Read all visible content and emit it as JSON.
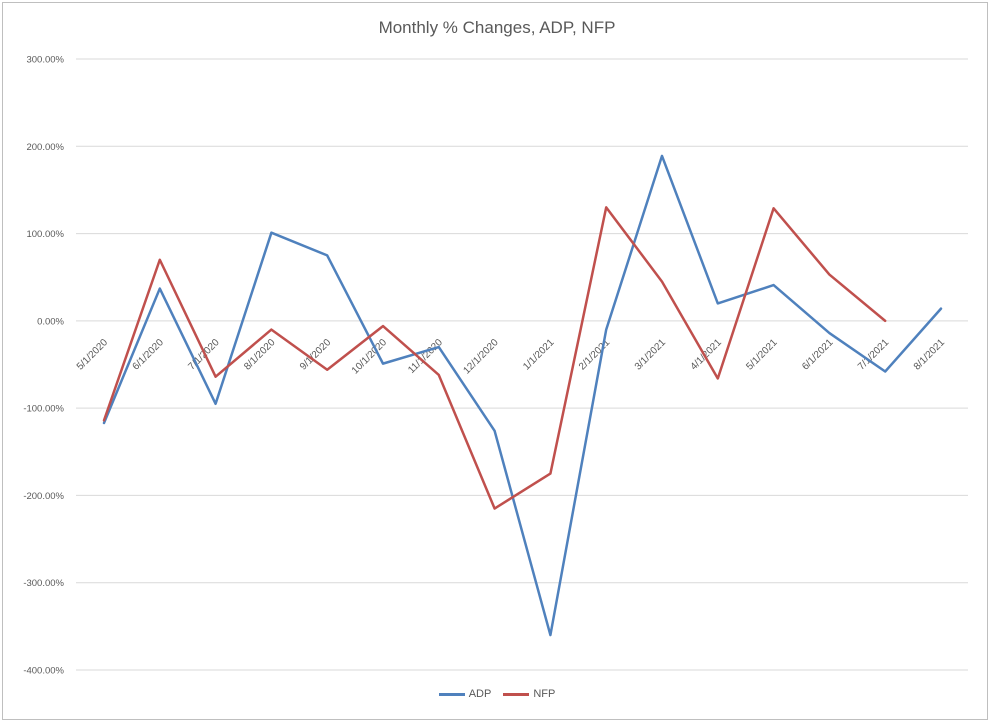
{
  "chart_data": {
    "type": "line",
    "title": "Monthly % Changes, ADP, NFP",
    "xlabel": "",
    "ylabel": "",
    "ylim": [
      -400,
      300
    ],
    "yticks": [
      300,
      200,
      100,
      0,
      -100,
      -200,
      -300,
      -400
    ],
    "ytick_labels": [
      "300.00%",
      "200.00%",
      "100.00%",
      "0.00%",
      "-100.00%",
      "-200.00%",
      "-300.00%",
      "-400.00%"
    ],
    "categories": [
      "5/1/2020",
      "6/1/2020",
      "7/1/2020",
      "8/1/2020",
      "9/1/2020",
      "10/1/2020",
      "11/1/2020",
      "12/1/2020",
      "1/1/2021",
      "2/1/2021",
      "3/1/2021",
      "4/1/2021",
      "5/1/2021",
      "6/1/2021",
      "7/1/2021",
      "8/1/2021"
    ],
    "series": [
      {
        "name": "ADP",
        "color": "#4f81bd",
        "values": [
          -117,
          37,
          -95,
          101,
          75,
          -49,
          -30,
          -126,
          -360,
          -10,
          189,
          20,
          41,
          -14,
          -58,
          14
        ]
      },
      {
        "name": "NFP",
        "color": "#c0504d",
        "values": [
          -114,
          70,
          -64,
          -10,
          -56,
          -6,
          -62,
          -215,
          -175,
          130,
          45,
          -66,
          129,
          53,
          0,
          null
        ]
      }
    ],
    "legend_position": "bottom",
    "grid": true
  }
}
